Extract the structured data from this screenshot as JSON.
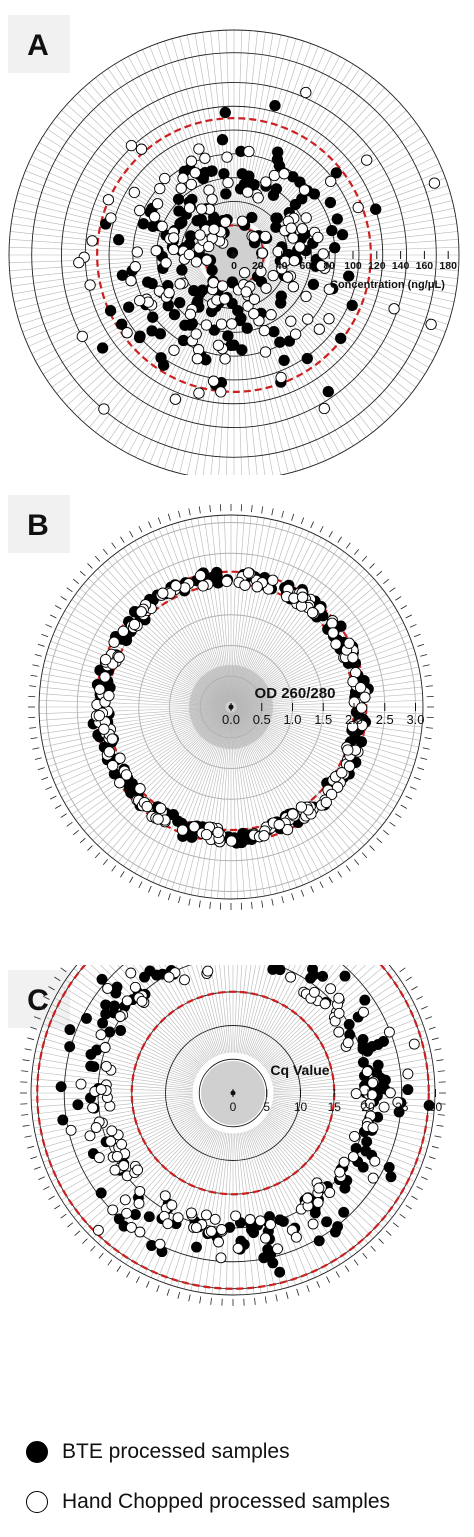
{
  "colors": {
    "bte": "#000000",
    "hand": "#ffffff",
    "threshold": "#cc1f1f",
    "rings": "#222222",
    "spokes": "#b8b8b8",
    "center_shade": "#c8c8c8"
  },
  "legend": {
    "bte": "BTE processed samples",
    "hand": "Hand Chopped processed samples"
  },
  "chart_data": [
    {
      "panel": "A",
      "type": "scatter",
      "coordinate_system": "polar",
      "axis_label": "Concentration (ng/μL)",
      "tick_labels": [
        "0",
        "20",
        "40",
        "60",
        "80",
        "100",
        "120",
        "140",
        "160",
        "180"
      ],
      "r_range": [
        0,
        180
      ],
      "reference_rings_dashed": [
        25,
        115
      ],
      "legend_placement": "bottom",
      "series": [
        {
          "name": "BTE processed samples",
          "style": "filled",
          "bands": [
            {
              "r_min": 2,
              "r_max": 6,
              "count": 1
            },
            {
              "r_min": 18,
              "r_max": 45,
              "count": 45
            },
            {
              "r_min": 45,
              "r_max": 85,
              "count": 95
            },
            {
              "r_min": 85,
              "r_max": 115,
              "count": 35
            },
            {
              "r_min": 115,
              "r_max": 145,
              "count": 5
            }
          ]
        },
        {
          "name": "Hand Chopped processed samples",
          "style": "open",
          "bands": [
            {
              "r_min": 10,
              "r_max": 22,
              "count": 4
            },
            {
              "r_min": 22,
              "r_max": 45,
              "count": 40
            },
            {
              "r_min": 45,
              "r_max": 90,
              "count": 85
            },
            {
              "r_min": 90,
              "r_max": 130,
              "count": 20
            },
            {
              "r_min": 130,
              "r_max": 180,
              "count": 10
            }
          ]
        }
      ]
    },
    {
      "panel": "B",
      "type": "scatter",
      "coordinate_system": "polar",
      "axis_label": "OD 260/280",
      "tick_labels": [
        "0.0",
        "0.5",
        "1.0",
        "1.5",
        "2.0",
        "2.5",
        "3.0"
      ],
      "r_range": [
        0,
        3.2
      ],
      "reference_rings_dashed": [
        2.0,
        2.2
      ],
      "legend_placement": "bottom",
      "series": [
        {
          "name": "BTE processed samples",
          "style": "filled",
          "bands": [
            {
              "r_min": 1.98,
              "r_max": 2.22,
              "count": 175
            },
            {
              "r_min": 2.22,
              "r_max": 2.45,
              "count": 5
            }
          ]
        },
        {
          "name": "Hand Chopped processed samples",
          "style": "open",
          "bands": [
            {
              "r_min": 1.98,
              "r_max": 2.2,
              "count": 180
            }
          ]
        }
      ]
    },
    {
      "panel": "C",
      "type": "scatter",
      "coordinate_system": "polar",
      "axis_label": "Cq Value",
      "tick_labels": [
        "0",
        "5",
        "10",
        "15",
        "20",
        "25",
        "30"
      ],
      "r_range": [
        0,
        30
      ],
      "reference_rings_dashed": [
        15,
        29
      ],
      "legend_placement": "bottom",
      "series": [
        {
          "name": "BTE processed samples",
          "style": "filled",
          "bands": [
            {
              "r_min": 19,
              "r_max": 22,
              "count": 110
            },
            {
              "r_min": 22,
              "r_max": 26,
              "count": 60
            },
            {
              "r_min": 26,
              "r_max": 30,
              "count": 5
            }
          ]
        },
        {
          "name": "Hand Chopped processed samples",
          "style": "open",
          "bands": [
            {
              "r_min": 18,
              "r_max": 21,
              "count": 120
            },
            {
              "r_min": 21,
              "r_max": 25,
              "count": 45
            },
            {
              "r_min": 25,
              "r_max": 29,
              "count": 5
            }
          ]
        }
      ]
    }
  ],
  "panels": [
    {
      "label": "A"
    },
    {
      "label": "B"
    },
    {
      "label": "C"
    }
  ]
}
